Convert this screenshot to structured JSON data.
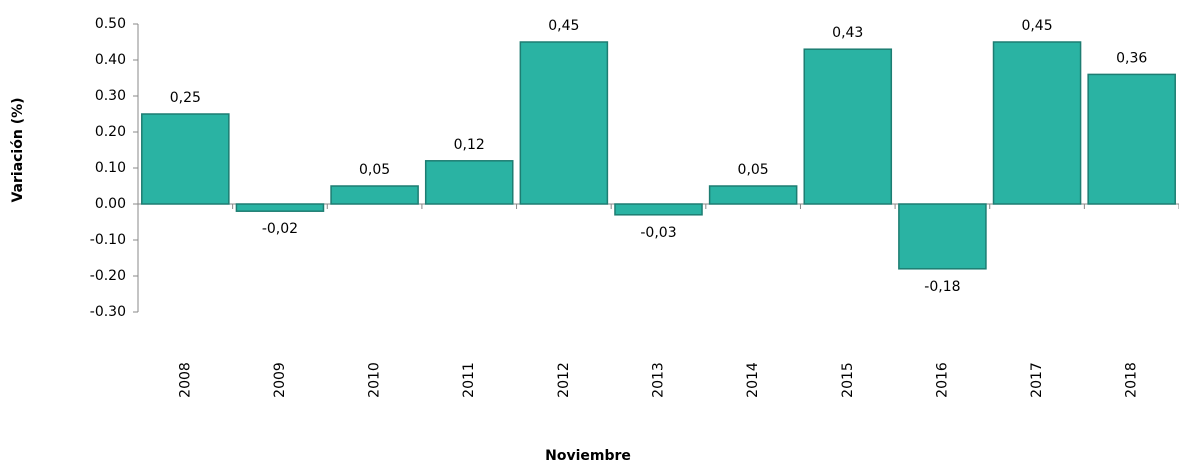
{
  "chart_data": {
    "type": "bar",
    "y_label": "Variación (%)",
    "x_label": "Noviembre",
    "categories": [
      "2008",
      "2009",
      "2010",
      "2011",
      "2012",
      "2013",
      "2014",
      "2015",
      "2016",
      "2017",
      "2018"
    ],
    "values": [
      0.25,
      -0.02,
      0.05,
      0.12,
      0.45,
      -0.03,
      0.05,
      0.43,
      -0.18,
      0.45,
      0.36
    ],
    "value_labels": [
      "0,25",
      "-0,02",
      "0,05",
      "0,12",
      "0,45",
      "-0,03",
      "0,05",
      "0,43",
      "-0,18",
      "0,45",
      "0,36"
    ],
    "color": "#2ab3a3",
    "ylim": [
      -0.3,
      0.5
    ],
    "yticks": [
      {
        "value": -0.3,
        "label": "-0.30"
      },
      {
        "value": -0.2,
        "label": "-0.20"
      },
      {
        "value": -0.1,
        "label": "-0.10"
      },
      {
        "value": 0,
        "label": "0.00"
      },
      {
        "value": 0.1,
        "label": "0.10"
      },
      {
        "value": 0.2,
        "label": "0.20"
      },
      {
        "value": 0.3,
        "label": "0.30"
      },
      {
        "value": 0.4,
        "label": "0.40"
      },
      {
        "value": 0.5,
        "label": "0.50"
      }
    ],
    "grid": false
  }
}
